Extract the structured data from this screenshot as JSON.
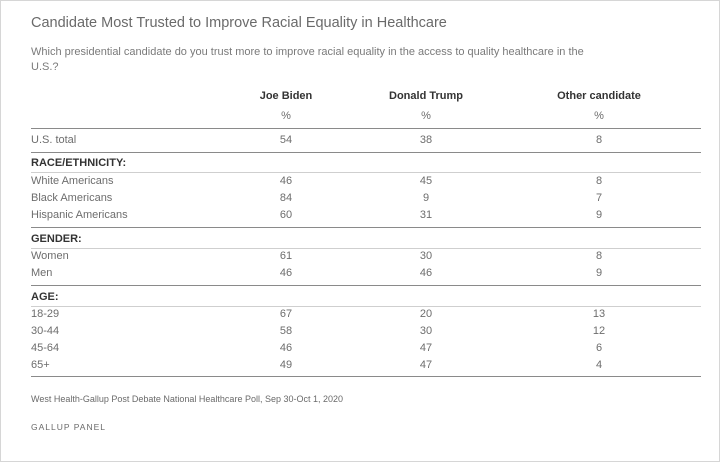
{
  "title": "Candidate Most Trusted to Improve Racial Equality in Healthcare",
  "subtitle": "Which presidential candidate do you trust more to improve racial equality in the access to quality healthcare in the U.S.?",
  "source": "West Health-Gallup Post Debate National Healthcare Poll, Sep 30-Oct 1, 2020",
  "panel": "GALLUP PANEL",
  "chart_data": {
    "type": "table",
    "title": "Candidate Most Trusted to Improve Racial Equality in Healthcare",
    "columns": [
      "Joe Biden",
      "Donald Trump",
      "Other candidate"
    ],
    "unit": "%",
    "total": {
      "label": "U.S. total",
      "values": [
        "54",
        "38",
        "8"
      ]
    },
    "sections": [
      {
        "name": "RACE/ETHNICITY:",
        "rows": [
          {
            "label": "White Americans",
            "values": [
              "46",
              "45",
              "8"
            ]
          },
          {
            "label": "Black Americans",
            "values": [
              "84",
              "9",
              "7"
            ]
          },
          {
            "label": "Hispanic Americans",
            "values": [
              "60",
              "31",
              "9"
            ]
          }
        ]
      },
      {
        "name": "GENDER:",
        "rows": [
          {
            "label": "Women",
            "values": [
              "61",
              "30",
              "8"
            ]
          },
          {
            "label": "Men",
            "values": [
              "46",
              "46",
              "9"
            ]
          }
        ]
      },
      {
        "name": "AGE:",
        "rows": [
          {
            "label": "18-29",
            "values": [
              "67",
              "20",
              "13"
            ]
          },
          {
            "label": "30-44",
            "values": [
              "58",
              "30",
              "12"
            ]
          },
          {
            "label": "45-64",
            "values": [
              "46",
              "47",
              "6"
            ]
          },
          {
            "label": "65+",
            "values": [
              "49",
              "47",
              "4"
            ]
          }
        ]
      }
    ]
  }
}
